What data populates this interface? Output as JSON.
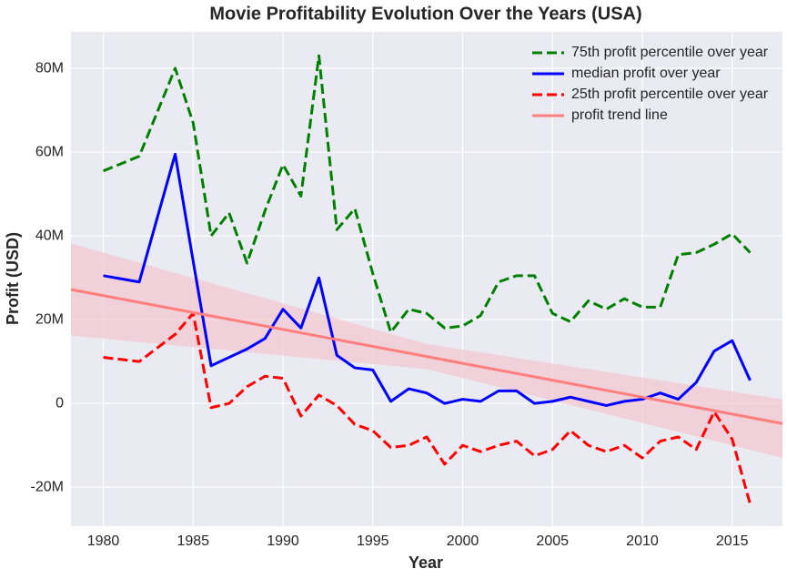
{
  "chart_data": {
    "type": "line",
    "title": "Movie Profitability Evolution Over the Years (USA)",
    "x_label": "Year",
    "y_label": "Profit (USD)",
    "x": [
      1980,
      1982,
      1984,
      1985,
      1986,
      1987,
      1988,
      1989,
      1990,
      1991,
      1992,
      1993,
      1994,
      1995,
      1996,
      1997,
      1998,
      1999,
      2000,
      2001,
      2002,
      2003,
      2004,
      2005,
      2006,
      2007,
      2008,
      2009,
      2010,
      2011,
      2012,
      2013,
      2014,
      2015,
      2016
    ],
    "series": [
      {
        "name": "75th profit percentile over year",
        "color": "#008000",
        "dash": true,
        "values": [
          55500000,
          59000000,
          80000000,
          67000000,
          40000000,
          45500000,
          33500000,
          46000000,
          57000000,
          49500000,
          83000000,
          41500000,
          46500000,
          31000000,
          17000000,
          22500000,
          21500000,
          18000000,
          18500000,
          21000000,
          29000000,
          30500000,
          30500000,
          21500000,
          19500000,
          24500000,
          22500000,
          25000000,
          23000000,
          23000000,
          35500000,
          36000000,
          38000000,
          40500000,
          36000000
        ]
      },
      {
        "name": "median profit over year",
        "color": "#0000ff",
        "dash": false,
        "values": [
          30500000,
          29000000,
          59500000,
          34000000,
          9000000,
          11000000,
          13000000,
          15500000,
          22500000,
          18000000,
          30000000,
          11500000,
          8500000,
          8000000,
          500000,
          3500000,
          2500000,
          0,
          1000000,
          500000,
          3000000,
          3000000,
          0,
          500000,
          1500000,
          500000,
          -500000,
          500000,
          1000000,
          2500000,
          1000000,
          5000000,
          12500000,
          15000000,
          5500000
        ]
      },
      {
        "name": "25th profit percentile over year",
        "color": "#ff0000",
        "dash": true,
        "values": [
          11000000,
          10000000,
          16500000,
          21500000,
          -1000000,
          0,
          4000000,
          6500000,
          6000000,
          -3000000,
          2000000,
          -500000,
          -5000000,
          -6500000,
          -10500000,
          -10000000,
          -8000000,
          -14500000,
          -10000000,
          -11500000,
          -10000000,
          -9000000,
          -12500000,
          -11000000,
          -6500000,
          -10000000,
          -11500000,
          -10000000,
          -13000000,
          -9000000,
          -8000000,
          -11000000,
          -2000000,
          -8500000,
          -24000000
        ]
      },
      {
        "name": "profit trend line",
        "color": "#ff7f7f",
        "dash": false,
        "band_color": "#f4c6cf",
        "x": [
          1978.2,
          1998,
          2017.8
        ],
        "values": [
          27200000,
          11200000,
          -4800000
        ],
        "lower": [
          16200000,
          8200000,
          -13000000
        ],
        "upper": [
          38200000,
          14200000,
          1000000
        ]
      }
    ],
    "xlim": [
      1978.2,
      2017.8
    ],
    "ylim": [
      -29300000,
      88700000
    ],
    "xticks": [
      1980,
      1985,
      1990,
      1995,
      2000,
      2005,
      2010,
      2015
    ],
    "yticks": [
      {
        "value": -20000000,
        "label": "-20M"
      },
      {
        "value": 0,
        "label": "0"
      },
      {
        "value": 20000000,
        "label": "20M"
      },
      {
        "value": 40000000,
        "label": "40M"
      },
      {
        "value": 60000000,
        "label": "60M"
      },
      {
        "value": 80000000,
        "label": "80M"
      }
    ],
    "grid": true,
    "legend": "upper right"
  }
}
